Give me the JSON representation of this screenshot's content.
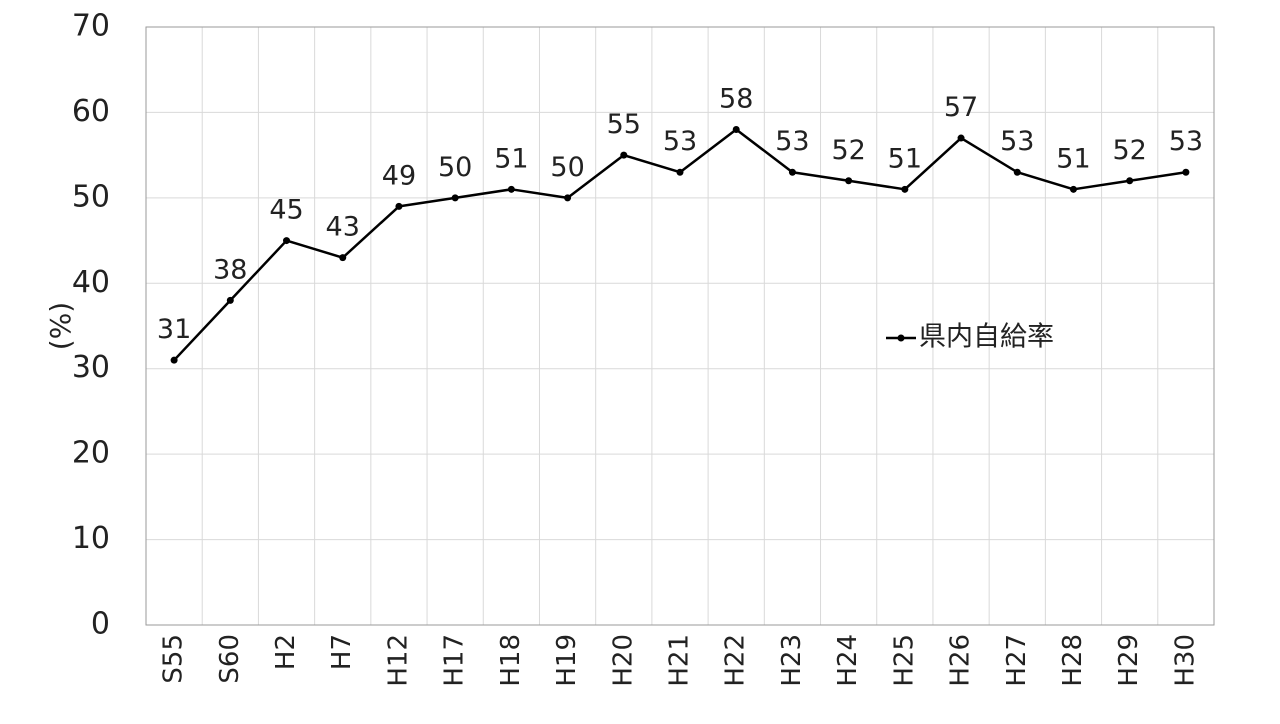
{
  "chart_data": {
    "type": "line",
    "title": "",
    "xlabel": "",
    "ylabel": "(%)",
    "ylim": [
      0,
      70
    ],
    "yticks": [
      "0",
      "10",
      "20",
      "30",
      "40",
      "50",
      "60",
      "70"
    ],
    "grid": true,
    "legend_position": "right",
    "categories": [
      "S55",
      "S60",
      "H2",
      "H7",
      "H12",
      "H17",
      "H18",
      "H19",
      "H20",
      "H21",
      "H22",
      "H23",
      "H24",
      "H25",
      "H26",
      "H27",
      "H28",
      "H29",
      "H30"
    ],
    "series": [
      {
        "name": "県内自給率",
        "values": [
          31,
          38,
          45,
          43,
          49,
          50,
          51,
          50,
          55,
          53,
          58,
          53,
          52,
          51,
          57,
          53,
          51,
          52,
          53
        ],
        "color": "#000000"
      }
    ]
  }
}
